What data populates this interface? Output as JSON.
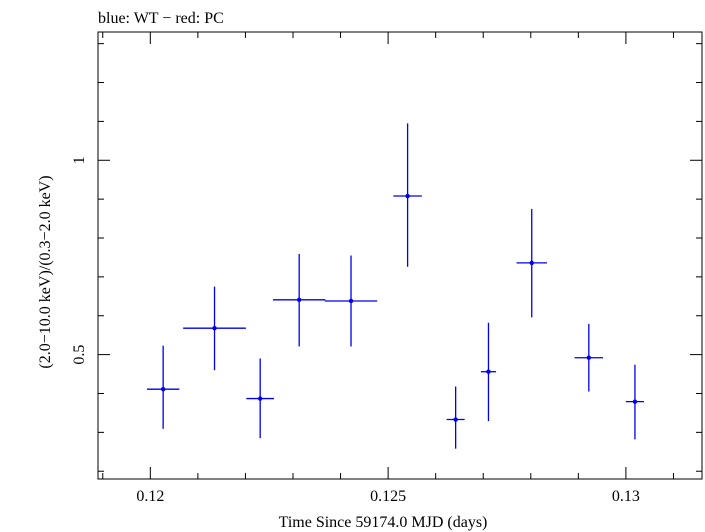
{
  "chart_data": {
    "type": "scatter",
    "title": "blue: WT − red: PC",
    "xlabel": "Time Since 59174.0 MJD (days)",
    "ylabel": "(2.0−10.0 keV)/(0.3−2.0 keV)",
    "xlim": [
      0.1189,
      0.1316
    ],
    "ylim": [
      0.18,
      1.33
    ],
    "x_ticks": [
      {
        "value": 0.12,
        "label": "0.12"
      },
      {
        "value": 0.125,
        "label": "0.125"
      },
      {
        "value": 0.13,
        "label": "0.13"
      }
    ],
    "y_ticks": [
      {
        "value": 0.5,
        "label": "0.5"
      },
      {
        "value": 1.0,
        "label": "1"
      }
    ],
    "series": [
      {
        "color": "#0000ee",
        "points": [
          {
            "x": 0.12027,
            "xerr": 0.00034,
            "y": 0.411,
            "ylo": 0.309,
            "yhi": 0.523
          },
          {
            "x": 0.12135,
            "xerr": 0.00066,
            "y": 0.568,
            "ylo": 0.46,
            "yhi": 0.675
          },
          {
            "x": 0.12231,
            "xerr": 0.00029,
            "y": 0.387,
            "ylo": 0.285,
            "yhi": 0.49
          },
          {
            "x": 0.12313,
            "xerr": 0.00055,
            "y": 0.641,
            "ylo": 0.521,
            "yhi": 0.759
          },
          {
            "x": 0.12422,
            "xerr": 0.00055,
            "y": 0.638,
            "ylo": 0.521,
            "yhi": 0.755
          },
          {
            "x": 0.12541,
            "xerr": 0.0003,
            "y": 0.908,
            "ylo": 0.726,
            "yhi": 1.095
          },
          {
            "x": 0.12642,
            "xerr": 0.00019,
            "y": 0.333,
            "ylo": 0.258,
            "yhi": 0.418
          },
          {
            "x": 0.12711,
            "xerr": 0.00016,
            "y": 0.456,
            "ylo": 0.329,
            "yhi": 0.582
          },
          {
            "x": 0.12802,
            "xerr": 0.00032,
            "y": 0.736,
            "ylo": 0.596,
            "yhi": 0.875
          },
          {
            "x": 0.12922,
            "xerr": 0.0003,
            "y": 0.492,
            "ylo": 0.405,
            "yhi": 0.579
          },
          {
            "x": 0.13019,
            "xerr": 0.00019,
            "y": 0.379,
            "ylo": 0.282,
            "yhi": 0.474
          }
        ]
      }
    ],
    "grid": false,
    "legend": "none"
  }
}
